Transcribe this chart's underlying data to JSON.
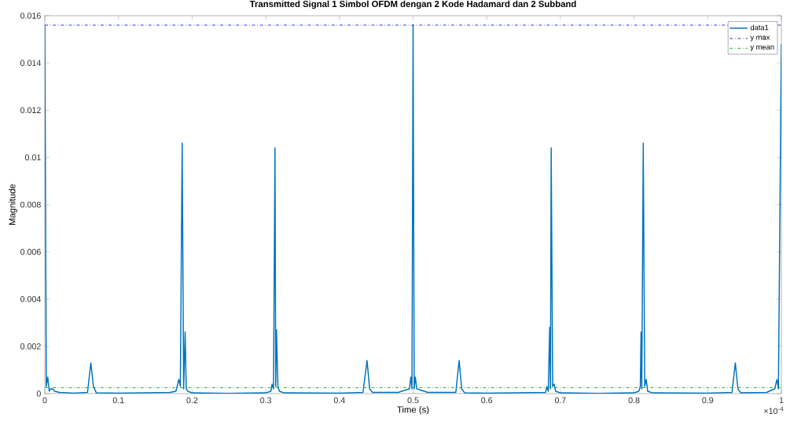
{
  "chart_data": {
    "type": "line",
    "title": "Transmitted Signal 1 Simbol OFDM dengan 2 Kode Hadamard dan 2 Subband",
    "xlabel": "Time (s)",
    "ylabel": "Magnitude",
    "xlim": [
      0,
      1
    ],
    "ylim": [
      0,
      0.016
    ],
    "xticks": [
      0,
      0.1,
      0.2,
      0.3,
      0.4,
      0.5,
      0.6,
      0.7,
      0.8,
      0.9,
      1
    ],
    "yticks": [
      0,
      0.002,
      0.004,
      0.006,
      0.008,
      0.01,
      0.012,
      0.014,
      0.016
    ],
    "grid": false,
    "legend": "top right",
    "marker": "none",
    "annotations": [
      "×10$^{-4}$"
    ],
    "series": [
      {
        "name": "data1",
        "color": "#0072bd",
        "line_style": "solid",
        "x": [
          0,
          0.002,
          0.004,
          0.006,
          0.008,
          0.011,
          0.013,
          0.02,
          0.04,
          0.058,
          0.0625,
          0.066,
          0.07,
          0.1,
          0.17,
          0.178,
          0.182,
          0.184,
          0.1865,
          0.1885,
          0.1905,
          0.192,
          0.194,
          0.2,
          0.25,
          0.3,
          0.307,
          0.3085,
          0.3105,
          0.3125,
          0.3135,
          0.3145,
          0.3165,
          0.3185,
          0.325,
          0.4,
          0.432,
          0.4375,
          0.441,
          0.445,
          0.48,
          0.495,
          0.497,
          0.4985,
          0.5,
          0.5015,
          0.503,
          0.505,
          0.52,
          0.558,
          0.5625,
          0.566,
          0.57,
          0.6,
          0.68,
          0.6815,
          0.6835,
          0.6855,
          0.6865,
          0.6875,
          0.6895,
          0.6915,
          0.6935,
          0.7,
          0.75,
          0.8,
          0.8065,
          0.8085,
          0.8095,
          0.8105,
          0.8125,
          0.8145,
          0.8165,
          0.8185,
          0.825,
          0.9,
          0.933,
          0.9375,
          0.941,
          0.945,
          0.98,
          0.991,
          0.994,
          0.996,
          1
        ],
        "values": [
          0.0156,
          0.0003,
          0.0007,
          0.0001,
          0.0002,
          0.0002,
          0.0001,
          5e-05,
          2e-05,
          5e-05,
          0.0013,
          0.0003,
          3e-05,
          2e-05,
          5e-05,
          0.0001,
          0.0006,
          0.0003,
          0.0106,
          0.0002,
          0.0026,
          0.0002,
          0.0001,
          3e-05,
          1e-05,
          3e-05,
          0.0001,
          0.0004,
          0.0002,
          0.0104,
          0.0003,
          0.0027,
          0.0003,
          0.0001,
          3e-05,
          2e-05,
          5e-05,
          0.0014,
          0.0002,
          5e-05,
          5e-05,
          0.0002,
          0.0007,
          0.0002,
          0.0156,
          0.0002,
          0.0007,
          0.0002,
          5e-05,
          5e-05,
          0.0014,
          0.0002,
          3e-05,
          2e-05,
          5e-05,
          0.0003,
          0.0001,
          0.0028,
          0.0002,
          0.0104,
          0.0003,
          0.0004,
          0.0001,
          3e-05,
          1e-05,
          3e-05,
          0.0001,
          0.0003,
          0.0026,
          0.0002,
          0.0106,
          0.0003,
          0.0006,
          0.0001,
          3e-05,
          2e-05,
          5e-05,
          0.0013,
          0.0002,
          3e-05,
          5e-05,
          0.0002,
          0.0006,
          0.0002,
          0.0148
        ]
      }
    ],
    "ref_lines": [
      {
        "axis": "y",
        "value": 0.0156,
        "label": "y max",
        "color": "#0000ff",
        "line_style": "dashed"
      },
      {
        "axis": "y",
        "value": 0.00025,
        "label": "y mean",
        "color": "#00a000",
        "line_style": "dashed"
      }
    ]
  }
}
